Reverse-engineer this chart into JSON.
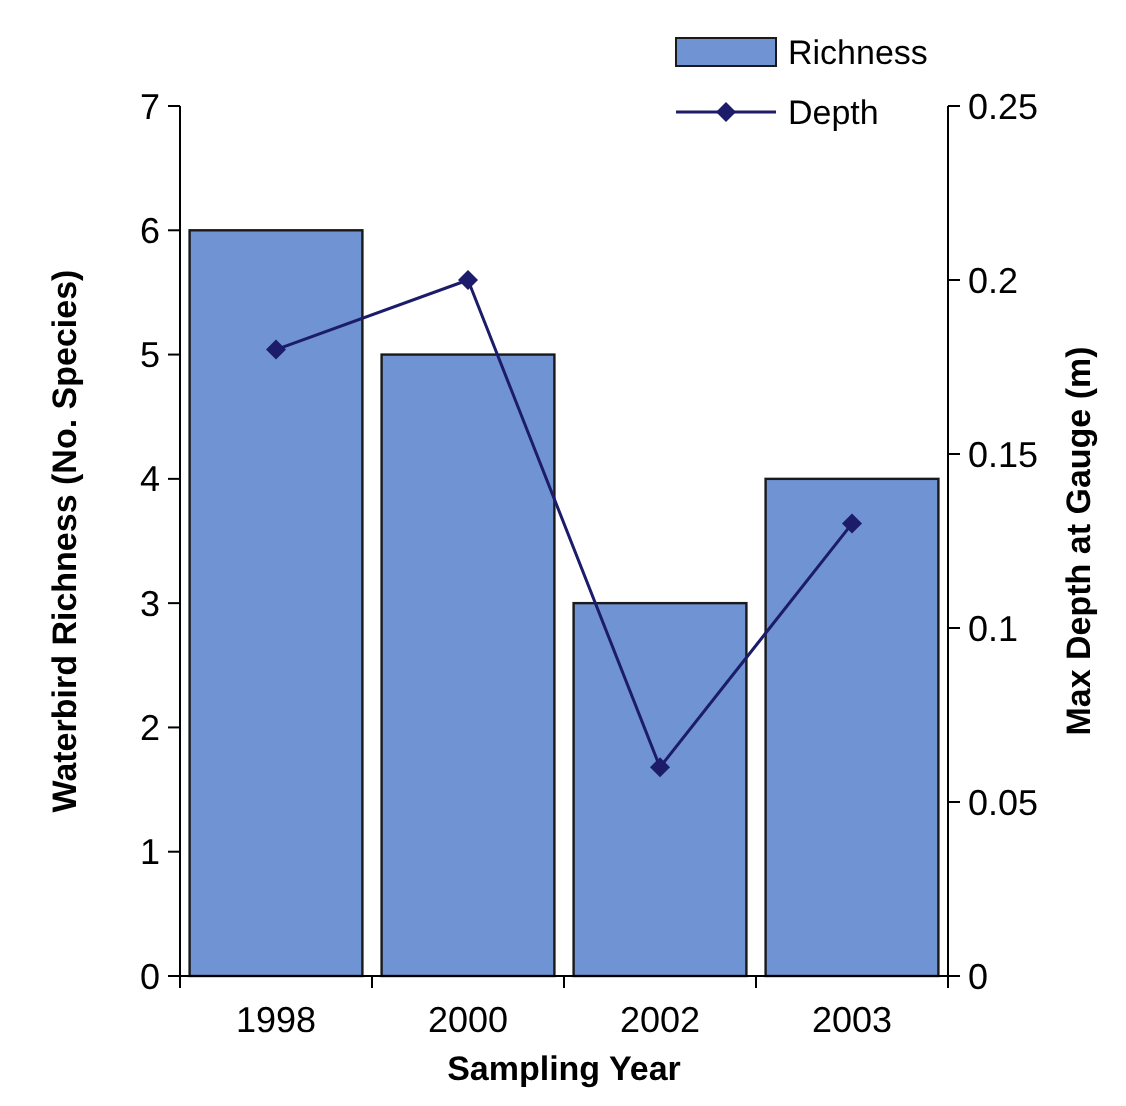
{
  "chart_data": {
    "type": "bar",
    "xlabel": "Sampling Year",
    "ylabel": "Waterbird Richness (No. Species)",
    "y2label": "Max Depth at Gauge (m)",
    "categories": [
      "1998",
      "2000",
      "2002",
      "2003"
    ],
    "series": [
      {
        "name": "Richness",
        "color": "#6f93d3",
        "values": [
          6,
          5,
          3,
          4
        ]
      },
      {
        "name": "Depth",
        "type": "line",
        "axis": "y2",
        "color": "#1c1c6b",
        "marker": "diamond",
        "values": [
          0.18,
          0.2,
          0.06,
          0.13
        ]
      }
    ],
    "ylim": [
      0,
      7
    ],
    "yticks": [
      0,
      1,
      2,
      3,
      4,
      5,
      6,
      7
    ],
    "y2lim": [
      0,
      0.25
    ],
    "y2ticks": [
      0,
      0.05,
      0.1,
      0.15,
      0.2,
      0.25
    ],
    "grid": false,
    "legend": "top right"
  }
}
